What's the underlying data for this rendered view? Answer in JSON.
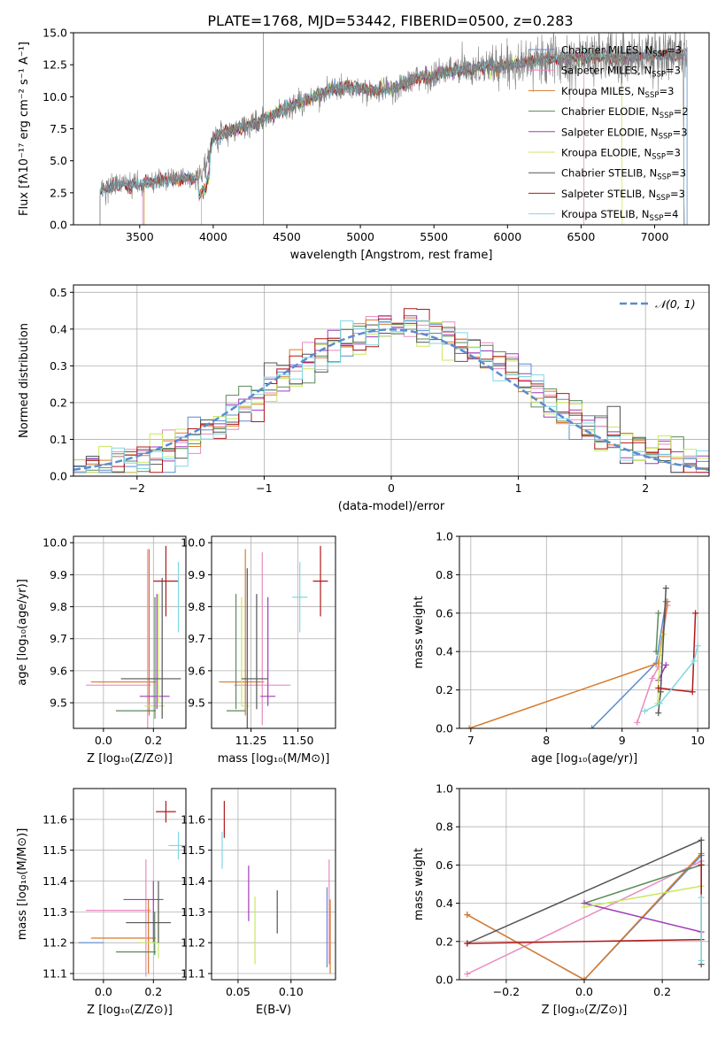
{
  "figure": {
    "title": "PLATE=1768, MJD=53442, FIBERID=0500, z=0.283"
  },
  "series_colors": {
    "chabrier_miles": "#5b8bd0",
    "salpeter_miles": "#e88bbf",
    "kroupa_miles": "#d87a2a",
    "chabrier_elodie": "#5a8a5a",
    "salpeter_elodie": "#a03cb8",
    "kroupa_elodie": "#c8e860",
    "chabrier_stelib": "#555555",
    "salpeter_stelib": "#b01818",
    "kroupa_stelib": "#80d8e0",
    "normal": "#5b8bd0",
    "data": "#808080"
  },
  "chart_data": [
    {
      "id": "spectrum",
      "type": "line",
      "xlabel": "wavelength [Angstrom, rest frame]",
      "ylabel": "Flux [fλ10⁻¹⁷ erg cm⁻² s⁻¹ A⁻¹]",
      "xlim": [
        3050,
        7370
      ],
      "ylim": [
        0,
        15
      ],
      "xticks": [
        "3500",
        "4000",
        "4500",
        "5000",
        "5500",
        "6000",
        "6500",
        "7000"
      ],
      "yticks": [
        "0.0",
        "2.5",
        "5.0",
        "7.5",
        "10.0",
        "12.5",
        "15.0"
      ],
      "legend_position": "top-right",
      "legend": [
        {
          "key": "chabrier_miles",
          "label": "Chabrier MILES, N",
          "sub": "SSP",
          "tail": "=3"
        },
        {
          "key": "salpeter_miles",
          "label": "Salpeter MILES, N",
          "sub": "SSP",
          "tail": "=3"
        },
        {
          "key": "kroupa_miles",
          "label": "Kroupa MILES, N",
          "sub": "SSP",
          "tail": "=3"
        },
        {
          "key": "chabrier_elodie",
          "label": "Chabrier ELODIE, N",
          "sub": "SSP",
          "tail": "=2"
        },
        {
          "key": "salpeter_elodie",
          "label": "Salpeter ELODIE, N",
          "sub": "SSP",
          "tail": "=3"
        },
        {
          "key": "kroupa_elodie",
          "label": "Kroupa ELODIE, N",
          "sub": "SSP",
          "tail": "=3"
        },
        {
          "key": "chabrier_stelib",
          "label": "Chabrier STELIB, N",
          "sub": "SSP",
          "tail": "=3"
        },
        {
          "key": "salpeter_stelib",
          "label": "Salpeter STELIB, N",
          "sub": "SSP",
          "tail": "=3"
        },
        {
          "key": "kroupa_stelib",
          "label": "Kroupa STELIB, N",
          "sub": "SSP",
          "tail": "=4"
        }
      ],
      "continuum": {
        "x": [
          3200,
          3250,
          3300,
          3400,
          3500,
          3600,
          3700,
          3800,
          3900,
          3950,
          4000,
          4100,
          4200,
          4300,
          4400,
          4500,
          4600,
          4700,
          4800,
          4900,
          5000,
          5100,
          5200,
          5300,
          5400,
          5500,
          5600,
          5700,
          5800,
          5900,
          6000,
          6200,
          6400,
          6600,
          6800,
          7000,
          7200
        ],
        "y": [
          2.0,
          2.8,
          3.0,
          3.1,
          3.2,
          3.4,
          3.5,
          3.6,
          3.7,
          4.5,
          6.8,
          7.3,
          7.6,
          8.0,
          8.6,
          9.1,
          9.6,
          10.0,
          10.6,
          10.8,
          10.6,
          10.5,
          10.5,
          11.0,
          11.5,
          11.6,
          12.0,
          12.1,
          12.3,
          12.4,
          12.5,
          12.8,
          13.0,
          13.1,
          13.1,
          13.2,
          13.3
        ]
      },
      "model_ranges": [
        [
          3230,
          7220
        ],
        [
          3520,
          6520
        ],
        [
          3530,
          7200
        ],
        [
          3920,
          7200
        ],
        [
          3920,
          7200
        ],
        [
          3920,
          6780
        ],
        [
          3230,
          7200
        ],
        [
          3230,
          7200
        ],
        [
          3230,
          7200
        ]
      ]
    },
    {
      "id": "residuals",
      "type": "histogram",
      "xlabel": "(data-model)/error",
      "ylabel": "Normed distribution",
      "xlim": [
        -2.5,
        2.5
      ],
      "ylim": [
        0,
        0.52
      ],
      "xticks": [
        "−2",
        "−1",
        "0",
        "1",
        "2"
      ],
      "yticks": [
        "0.0",
        "0.1",
        "0.2",
        "0.3",
        "0.4",
        "0.5"
      ],
      "legend_label": "𝒩(0, 1)",
      "bin_width": 0.1
    },
    {
      "id": "age_vs_Z",
      "type": "errorbar",
      "xlabel": "Z [log₁₀(Z/Z⊙)]",
      "ylabel": "age  [log₁₀(age/yr)]",
      "xlim": [
        -0.12,
        0.33
      ],
      "ylim": [
        9.42,
        10.02
      ],
      "xticks": [
        "0.0",
        "0.2"
      ],
      "yticks": [
        "9.5",
        "9.6",
        "9.7",
        "9.8",
        "9.9",
        "10.0"
      ],
      "points": [
        {
          "key": "chabrier_miles",
          "x": -0.05,
          "xe": 0.0,
          "y": 9.56,
          "ye": 0.0
        },
        {
          "key": "salpeter_miles",
          "x": 0.06,
          "xe": 0.13,
          "y": 9.555,
          "ye": 0.0
        },
        {
          "key": "kroupa_miles",
          "x": 0.08,
          "xe": 0.13,
          "y": 9.565,
          "ye": 0.0
        },
        {
          "key": "salpeter_miles",
          "x": 0.177,
          "xe": 0.0,
          "y": 9.7,
          "ye": 0.28
        },
        {
          "key": "kroupa_miles",
          "x": 0.183,
          "xe": 0.0,
          "y": 9.72,
          "ye": 0.26
        },
        {
          "key": "chabrier_elodie",
          "x": 0.13,
          "xe": 0.08,
          "y": 9.475,
          "ye": 0.0
        },
        {
          "key": "salpeter_elodie",
          "x": 0.205,
          "xe": 0.06,
          "y": 9.52,
          "ye": 0.0
        },
        {
          "key": "kroupa_elodie",
          "x": 0.205,
          "xe": 0.04,
          "y": 9.49,
          "ye": 0.0
        },
        {
          "key": "chabrier_elodie",
          "x": 0.206,
          "xe": 0.0,
          "y": 9.64,
          "ye": 0.19
        },
        {
          "key": "salpeter_elodie",
          "x": 0.214,
          "xe": 0.0,
          "y": 9.66,
          "ye": 0.18
        },
        {
          "key": "kroupa_elodie",
          "x": 0.22,
          "xe": 0.0,
          "y": 9.67,
          "ye": 0.17
        },
        {
          "key": "chabrier_stelib",
          "x": 0.19,
          "xe": 0.12,
          "y": 9.575,
          "ye": 0.0
        },
        {
          "key": "chabrier_stelib",
          "x": 0.235,
          "xe": 0.0,
          "y": 9.67,
          "ye": 0.22
        },
        {
          "key": "salpeter_stelib",
          "x": 0.25,
          "xe": 0.05,
          "y": 9.88,
          "ye": 0.11
        },
        {
          "key": "kroupa_stelib",
          "x": 0.3,
          "xe": 0.0,
          "y": 9.83,
          "ye": 0.11
        }
      ]
    },
    {
      "id": "age_vs_mass",
      "type": "errorbar",
      "xlabel": "mass [log₁₀(M/M⊙)]",
      "ylabel": "",
      "xlim": [
        11.04,
        11.7
      ],
      "ylim": [
        9.42,
        10.02
      ],
      "xticks": [
        "11.25",
        "11.50"
      ],
      "yticks": [
        "9.5",
        "9.6",
        "9.7",
        "9.8",
        "9.9",
        "10.0"
      ],
      "points": [
        {
          "key": "kroupa_miles",
          "x": 11.2,
          "xe": 0.12,
          "y": 9.565,
          "ye": 0.0
        },
        {
          "key": "salpeter_miles",
          "x": 11.31,
          "xe": 0.15,
          "y": 9.555,
          "ye": 0.0
        },
        {
          "key": "chabrier_miles",
          "x": 11.21,
          "xe": 0.0,
          "y": 9.55,
          "ye": 0.0
        },
        {
          "key": "kroupa_miles",
          "x": 11.22,
          "xe": 0.0,
          "y": 9.72,
          "ye": 0.26
        },
        {
          "key": "salpeter_miles",
          "x": 11.31,
          "xe": 0.0,
          "y": 9.7,
          "ye": 0.27
        },
        {
          "key": "chabrier_elodie",
          "x": 11.17,
          "xe": 0.05,
          "y": 9.475,
          "ye": 0.0
        },
        {
          "key": "chabrier_elodie",
          "x": 11.17,
          "xe": 0.0,
          "y": 9.66,
          "ye": 0.18
        },
        {
          "key": "kroupa_elodie",
          "x": 11.22,
          "xe": 0.02,
          "y": 9.49,
          "ye": 0.0
        },
        {
          "key": "kroupa_elodie",
          "x": 11.2,
          "xe": 0.0,
          "y": 9.66,
          "ye": 0.17
        },
        {
          "key": "salpeter_elodie",
          "x": 11.34,
          "xe": 0.04,
          "y": 9.52,
          "ye": 0.0
        },
        {
          "key": "salpeter_elodie",
          "x": 11.34,
          "xe": 0.0,
          "y": 9.66,
          "ye": 0.17
        },
        {
          "key": "chabrier_stelib",
          "x": 11.27,
          "xe": 0.07,
          "y": 9.575,
          "ye": 0.0
        },
        {
          "key": "chabrier_stelib",
          "x": 11.23,
          "xe": 0.0,
          "y": 9.67,
          "ye": 0.25
        },
        {
          "key": "chabrier_stelib",
          "x": 11.28,
          "xe": 0.0,
          "y": 9.66,
          "ye": 0.18
        },
        {
          "key": "salpeter_stelib",
          "x": 11.62,
          "xe": 0.04,
          "y": 9.88,
          "ye": 0.11
        },
        {
          "key": "kroupa_stelib",
          "x": 11.51,
          "xe": 0.04,
          "y": 9.83,
          "ye": 0.11
        }
      ]
    },
    {
      "id": "weight_vs_age",
      "type": "line",
      "xlabel": "age  [log₁₀(age/yr)]",
      "ylabel": "mass weight",
      "xlim": [
        6.85,
        10.15
      ],
      "ylim": [
        0,
        1
      ],
      "xticks": [
        "7",
        "8",
        "9",
        "10"
      ],
      "yticks": [
        "0.0",
        "0.2",
        "0.4",
        "0.6",
        "0.8",
        "1.0"
      ],
      "series": [
        {
          "key": "chabrier_miles",
          "x": [
            8.6,
            9.45,
            9.58
          ],
          "y": [
            0.0,
            0.34,
            0.66
          ]
        },
        {
          "key": "salpeter_miles",
          "x": [
            9.2,
            9.4,
            9.48,
            9.6
          ],
          "y": [
            0.03,
            0.26,
            0.32,
            0.64
          ]
        },
        {
          "key": "kroupa_miles",
          "x": [
            6.98,
            9.48,
            9.6
          ],
          "y": [
            0.0,
            0.34,
            0.66
          ]
        },
        {
          "key": "chabrier_elodie",
          "x": [
            9.45,
            9.48
          ],
          "y": [
            0.4,
            0.6
          ]
        },
        {
          "key": "salpeter_elodie",
          "x": [
            9.48,
            9.58
          ],
          "y": [
            0.25,
            0.33
          ]
        },
        {
          "key": "kroupa_elodie",
          "x": [
            9.47,
            9.5,
            9.55
          ],
          "y": [
            0.13,
            0.38,
            0.49
          ]
        },
        {
          "key": "chabrier_stelib",
          "x": [
            9.48,
            9.51,
            9.58
          ],
          "y": [
            0.08,
            0.19,
            0.73
          ]
        },
        {
          "key": "salpeter_stelib",
          "x": [
            9.48,
            9.93,
            9.97
          ],
          "y": [
            0.21,
            0.19,
            0.6
          ]
        },
        {
          "key": "kroupa_stelib",
          "x": [
            9.3,
            9.5,
            9.95,
            10.0
          ],
          "y": [
            0.09,
            0.13,
            0.35,
            0.43
          ]
        }
      ]
    },
    {
      "id": "mass_vs_Z",
      "type": "errorbar",
      "xlabel": "Z [log₁₀(Z/Z⊙)]",
      "ylabel": "mass [log₁₀(M/M⊙)]",
      "xlim": [
        -0.12,
        0.33
      ],
      "ylim": [
        11.08,
        11.7
      ],
      "xticks": [
        "0.0",
        "0.2"
      ],
      "yticks": [
        "11.1",
        "11.2",
        "11.3",
        "11.4",
        "11.5",
        "11.6"
      ],
      "points": [
        {
          "key": "chabrier_miles",
          "x": -0.05,
          "xe": 0.05,
          "y": 11.2,
          "ye": 0.0
        },
        {
          "key": "kroupa_miles",
          "x": 0.08,
          "xe": 0.13,
          "y": 11.215,
          "ye": 0.0
        },
        {
          "key": "salpeter_miles",
          "x": 0.06,
          "xe": 0.13,
          "y": 11.305,
          "ye": 0.0
        },
        {
          "key": "salpeter_miles",
          "x": 0.17,
          "xe": 0.0,
          "y": 11.28,
          "ye": 0.19
        },
        {
          "key": "kroupa_miles",
          "x": 0.18,
          "xe": 0.0,
          "y": 11.22,
          "ye": 0.12
        },
        {
          "key": "chabrier_elodie",
          "x": 0.13,
          "xe": 0.08,
          "y": 11.17,
          "ye": 0.0
        },
        {
          "key": "chabrier_elodie",
          "x": 0.205,
          "xe": 0.0,
          "y": 11.23,
          "ye": 0.07
        },
        {
          "key": "salpeter_elodie",
          "x": 0.16,
          "xe": 0.08,
          "y": 11.34,
          "ye": 0.0
        },
        {
          "key": "salpeter_elodie",
          "x": 0.2,
          "xe": 0.0,
          "y": 11.3,
          "ye": 0.1
        },
        {
          "key": "kroupa_elodie",
          "x": 0.18,
          "xe": 0.04,
          "y": 11.2,
          "ye": 0.0
        },
        {
          "key": "kroupa_elodie",
          "x": 0.22,
          "xe": 0.0,
          "y": 11.24,
          "ye": 0.09
        },
        {
          "key": "chabrier_stelib",
          "x": 0.18,
          "xe": 0.09,
          "y": 11.265,
          "ye": 0.0
        },
        {
          "key": "chabrier_stelib",
          "x": 0.22,
          "xe": 0.0,
          "y": 11.3,
          "ye": 0.1
        },
        {
          "key": "salpeter_stelib",
          "x": 0.25,
          "xe": 0.04,
          "y": 11.625,
          "ye": 0.035
        },
        {
          "key": "kroupa_stelib",
          "x": 0.3,
          "xe": 0.04,
          "y": 11.515,
          "ye": 0.045
        }
      ]
    },
    {
      "id": "mass_vs_ebv",
      "type": "errorbar",
      "xlabel": "E(B-V)",
      "ylabel": "",
      "xlim": [
        0.025,
        0.142
      ],
      "ylim": [
        11.08,
        11.7
      ],
      "xticks": [
        "0.05",
        "0.10"
      ],
      "yticks": [
        "11.1",
        "11.2",
        "11.3",
        "11.4",
        "11.5",
        "11.6"
      ],
      "points": [
        {
          "key": "salpeter_stelib",
          "x": 0.037,
          "xe": 0.0,
          "y": 11.6,
          "ye": 0.06
        },
        {
          "key": "kroupa_stelib",
          "x": 0.035,
          "xe": 0.0,
          "y": 11.5,
          "ye": 0.06
        },
        {
          "key": "salpeter_elodie",
          "x": 0.06,
          "xe": 0.0,
          "y": 11.36,
          "ye": 0.09
        },
        {
          "key": "kroupa_elodie",
          "x": 0.066,
          "xe": 0.0,
          "y": 11.24,
          "ye": 0.11
        },
        {
          "key": "chabrier_stelib",
          "x": 0.087,
          "xe": 0.0,
          "y": 11.3,
          "ye": 0.07
        },
        {
          "key": "chabrier_miles",
          "x": 0.134,
          "xe": 0.0,
          "y": 11.25,
          "ye": 0.13
        },
        {
          "key": "salpeter_miles",
          "x": 0.136,
          "xe": 0.0,
          "y": 11.3,
          "ye": 0.17
        },
        {
          "key": "kroupa_miles",
          "x": 0.137,
          "xe": 0.0,
          "y": 11.22,
          "ye": 0.12
        }
      ]
    },
    {
      "id": "weight_vs_Z",
      "type": "line",
      "xlabel": "Z [log₁₀(Z/Z⊙)]",
      "ylabel": "mass weight",
      "xlim": [
        -0.32,
        0.32
      ],
      "ylim": [
        0,
        1
      ],
      "xticks": [
        "−0.2",
        "0.0",
        "0.2"
      ],
      "yticks": [
        "0.0",
        "0.2",
        "0.4",
        "0.6",
        "0.8",
        "1.0"
      ],
      "series": [
        {
          "key": "chabrier_miles",
          "x": [
            -0.3,
            0.0,
            0.3
          ],
          "y": [
            0.34,
            0.0,
            0.65
          ]
        },
        {
          "key": "salpeter_miles",
          "x": [
            -0.3,
            0.3
          ],
          "y": [
            0.03,
            0.62
          ]
        },
        {
          "key": "kroupa_miles",
          "x": [
            -0.3,
            0.0,
            0.3
          ],
          "y": [
            0.34,
            0.0,
            0.66
          ]
        },
        {
          "key": "chabrier_elodie",
          "x": [
            0.0,
            0.3
          ],
          "y": [
            0.4,
            0.6
          ]
        },
        {
          "key": "salpeter_elodie",
          "x": [
            0.0,
            0.3
          ],
          "y": [
            0.4,
            0.25
          ]
        },
        {
          "key": "kroupa_elodie",
          "x": [
            0.0,
            0.3
          ],
          "y": [
            0.38,
            0.49
          ]
        },
        {
          "key": "chabrier_stelib",
          "x": [
            -0.3,
            0.3,
            0.3
          ],
          "y": [
            0.19,
            0.73,
            0.08
          ]
        },
        {
          "key": "salpeter_stelib",
          "x": [
            -0.3,
            0.3,
            0.3
          ],
          "y": [
            0.19,
            0.21,
            0.6
          ]
        },
        {
          "key": "kroupa_stelib",
          "x": [
            0.3,
            0.3
          ],
          "y": [
            0.1,
            0.43
          ]
        }
      ]
    }
  ]
}
